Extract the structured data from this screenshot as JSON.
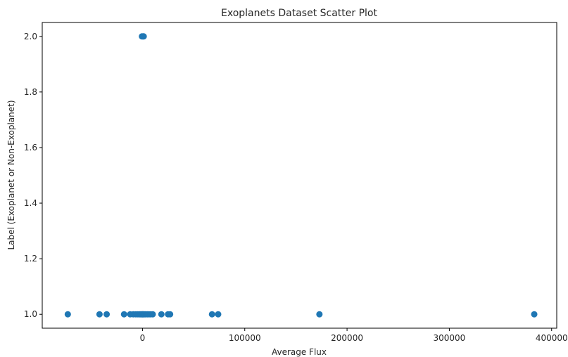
{
  "chart_data": {
    "type": "scatter",
    "title": "Exoplanets Dataset Scatter Plot",
    "xlabel": "Average Flux",
    "ylabel": "Label (Exoplanet or Non-Exoplanet)",
    "xlim": [
      -98000,
      405000
    ],
    "ylim": [
      0.95,
      2.05
    ],
    "xticks": [
      0,
      100000,
      200000,
      300000,
      400000
    ],
    "xtick_labels": [
      "0",
      "100000",
      "200000",
      "300000",
      "400000"
    ],
    "yticks": [
      1.0,
      1.2,
      1.4,
      1.6,
      1.8,
      2.0
    ],
    "ytick_labels": [
      "1.0",
      "1.2",
      "1.4",
      "1.6",
      "1.8",
      "2.0"
    ],
    "grid": false,
    "legend": "none",
    "marker_color": "#1f77b4",
    "series": [
      {
        "points": [
          {
            "x": -500,
            "y": 2.0
          },
          {
            "x": 500,
            "y": 2.0
          },
          {
            "x": 1200,
            "y": 2.0
          },
          {
            "x": -73000,
            "y": 1.0
          },
          {
            "x": -42000,
            "y": 1.0
          },
          {
            "x": -35000,
            "y": 1.0
          },
          {
            "x": -18000,
            "y": 1.0
          },
          {
            "x": -12000,
            "y": 1.0
          },
          {
            "x": -9000,
            "y": 1.0
          },
          {
            "x": -6500,
            "y": 1.0
          },
          {
            "x": -4500,
            "y": 1.0
          },
          {
            "x": -3000,
            "y": 1.0
          },
          {
            "x": -2000,
            "y": 1.0
          },
          {
            "x": -1000,
            "y": 1.0
          },
          {
            "x": -300,
            "y": 1.0
          },
          {
            "x": 200,
            "y": 1.0
          },
          {
            "x": 800,
            "y": 1.0
          },
          {
            "x": 1500,
            "y": 1.0
          },
          {
            "x": 2500,
            "y": 1.0
          },
          {
            "x": 3500,
            "y": 1.0
          },
          {
            "x": 5000,
            "y": 1.0
          },
          {
            "x": 6500,
            "y": 1.0
          },
          {
            "x": 8000,
            "y": 1.0
          },
          {
            "x": 10000,
            "y": 1.0
          },
          {
            "x": 18500,
            "y": 1.0
          },
          {
            "x": 25000,
            "y": 1.0
          },
          {
            "x": 27000,
            "y": 1.0
          },
          {
            "x": 68000,
            "y": 1.0
          },
          {
            "x": 74000,
            "y": 1.0
          },
          {
            "x": 173000,
            "y": 1.0
          },
          {
            "x": 383000,
            "y": 1.0
          }
        ]
      }
    ]
  }
}
